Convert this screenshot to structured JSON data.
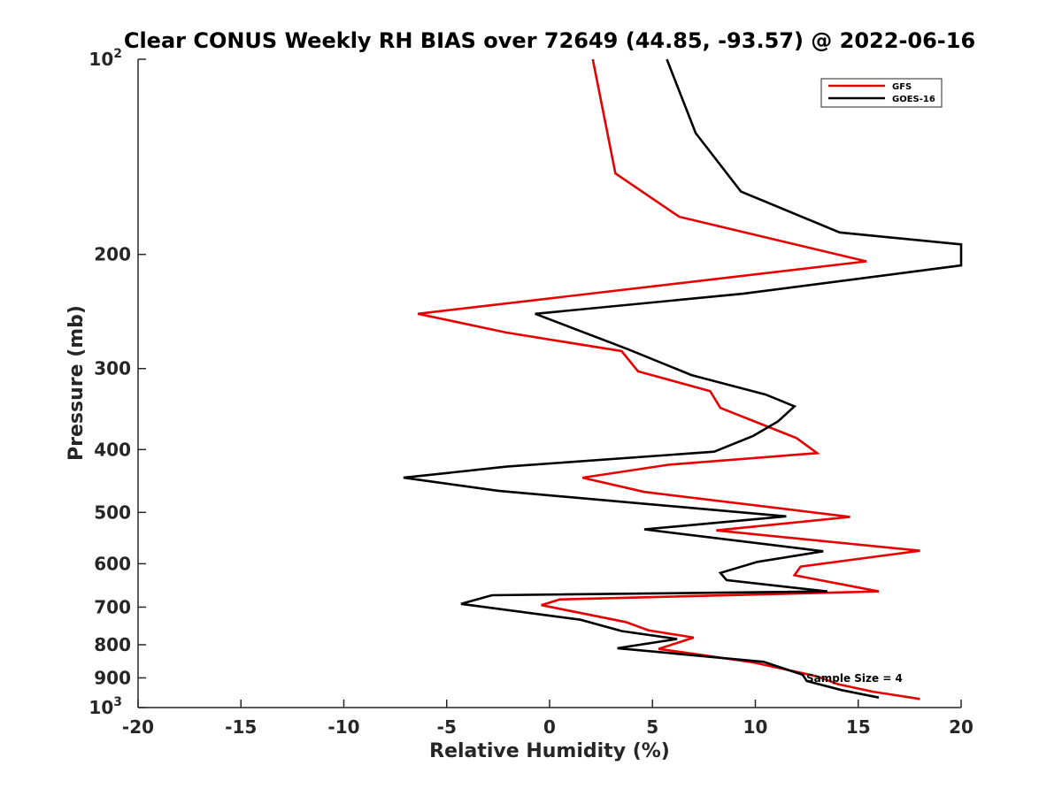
{
  "chart_data": {
    "type": "line",
    "title": "Clear CONUS Weekly RH BIAS over 72649 (44.85, -93.57) @ 2022-06-16",
    "xlabel": "Relative Humidity (%)",
    "ylabel": "Pressure (mb)",
    "xlim": [
      -20,
      20
    ],
    "ylim": [
      1000,
      100
    ],
    "yscale": "log",
    "y_reversed": true,
    "x_ticks": [
      "-20",
      "-15",
      "-10",
      "-5",
      "0",
      "5",
      "10",
      "15",
      "20"
    ],
    "y_ticks": [
      {
        "value": 100,
        "base": "10",
        "exp": "2"
      },
      {
        "value": 200,
        "base": "200",
        "exp": ""
      },
      {
        "value": 300,
        "base": "300",
        "exp": ""
      },
      {
        "value": 400,
        "base": "400",
        "exp": ""
      },
      {
        "value": 500,
        "base": "500",
        "exp": ""
      },
      {
        "value": 600,
        "base": "600",
        "exp": ""
      },
      {
        "value": 700,
        "base": "700",
        "exp": ""
      },
      {
        "value": 800,
        "base": "800",
        "exp": ""
      },
      {
        "value": 900,
        "base": "900",
        "exp": ""
      },
      {
        "value": 1000,
        "base": "10",
        "exp": "3"
      }
    ],
    "grid": false,
    "legend_position": "top-right",
    "annotation": "Sample Size = 4",
    "series": [
      {
        "name": "GFS",
        "color": "#e60000",
        "points": [
          [
            2.1,
            100
          ],
          [
            3.2,
            150
          ],
          [
            6.3,
            175
          ],
          [
            15.4,
            205
          ],
          [
            -6.4,
            247
          ],
          [
            -2.1,
            264
          ],
          [
            3.5,
            282
          ],
          [
            4.3,
            303
          ],
          [
            7.8,
            325
          ],
          [
            8.3,
            345
          ],
          [
            12.0,
            384
          ],
          [
            13.0,
            405
          ],
          [
            5.8,
            422
          ],
          [
            1.6,
            442
          ],
          [
            4.6,
            465
          ],
          [
            14.6,
            508
          ],
          [
            8.1,
            533
          ],
          [
            18.0,
            573
          ],
          [
            12.2,
            606
          ],
          [
            11.9,
            625
          ],
          [
            16.0,
            662
          ],
          [
            0.5,
            681
          ],
          [
            -0.4,
            695
          ],
          [
            3.7,
            738
          ],
          [
            4.8,
            760
          ],
          [
            7.0,
            780
          ],
          [
            5.3,
            812
          ],
          [
            7.1,
            827
          ],
          [
            9.9,
            852
          ],
          [
            13.0,
            895
          ],
          [
            14.0,
            920
          ],
          [
            15.7,
            945
          ],
          [
            18.0,
            970
          ]
        ]
      },
      {
        "name": "GOES-16",
        "color": "#000000",
        "points": [
          [
            5.7,
            100
          ],
          [
            7.1,
            130
          ],
          [
            9.3,
            160
          ],
          [
            14.1,
            185
          ],
          [
            20.0,
            193
          ],
          [
            20.0,
            208
          ],
          [
            9.4,
            230
          ],
          [
            -0.7,
            247
          ],
          [
            3.8,
            280
          ],
          [
            6.9,
            307
          ],
          [
            10.5,
            329
          ],
          [
            11.9,
            343
          ],
          [
            11.1,
            362
          ],
          [
            9.9,
            381
          ],
          [
            8.0,
            403
          ],
          [
            -2.1,
            425
          ],
          [
            -7.1,
            442
          ],
          [
            -2.5,
            463
          ],
          [
            11.5,
            507
          ],
          [
            4.6,
            531
          ],
          [
            13.3,
            574
          ],
          [
            10.1,
            596
          ],
          [
            8.3,
            620
          ],
          [
            8.6,
            636
          ],
          [
            13.5,
            662
          ],
          [
            -2.8,
            671
          ],
          [
            -4.3,
            692
          ],
          [
            1.5,
            732
          ],
          [
            3.5,
            762
          ],
          [
            6.2,
            784
          ],
          [
            3.3,
            810
          ],
          [
            10.4,
            850
          ],
          [
            12.3,
            890
          ],
          [
            12.5,
            910
          ],
          [
            14.2,
            940
          ],
          [
            16.0,
            965
          ]
        ]
      }
    ]
  }
}
